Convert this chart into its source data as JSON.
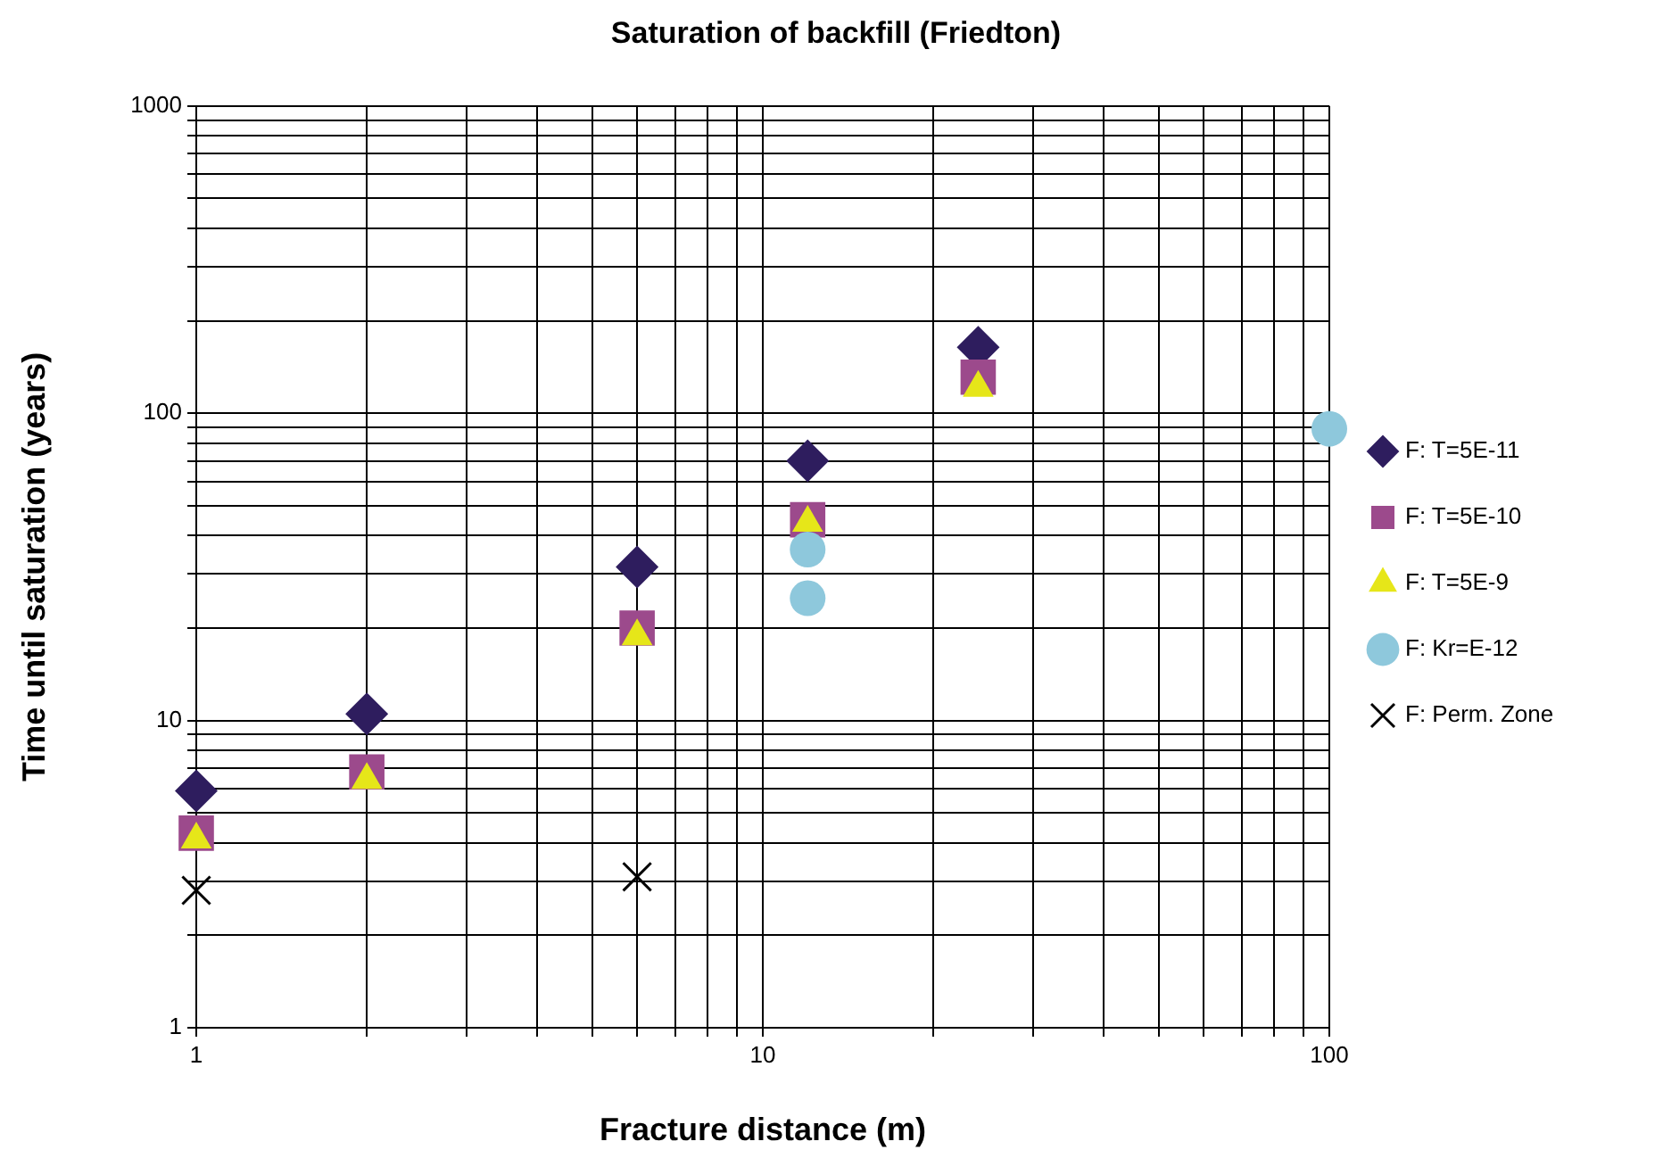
{
  "chart_data": {
    "type": "scatter",
    "title": "Saturation of backfill (Friedton)",
    "xlabel": "Fracture distance (m)",
    "ylabel": "Time until saturation (years)",
    "log": "xy",
    "grid": true,
    "legend": "right",
    "xlim": [
      1,
      100
    ],
    "ylim": [
      1,
      1000
    ],
    "xticks": [
      1,
      {
        "value": 2,
        "label": null
      },
      {
        "value": 3,
        "label": null
      },
      {
        "value": 4,
        "label": null
      },
      {
        "value": 5,
        "label": null
      },
      {
        "value": 6,
        "label": null
      },
      {
        "value": 7,
        "label": null
      },
      {
        "value": 8,
        "label": null
      },
      {
        "value": 9,
        "label": null
      },
      10,
      {
        "value": 20,
        "label": null
      },
      {
        "value": 30,
        "label": null
      },
      {
        "value": 40,
        "label": null
      },
      {
        "value": 50,
        "label": null
      },
      {
        "value": 60,
        "label": null
      },
      {
        "value": 70,
        "label": null
      },
      {
        "value": 80,
        "label": null
      },
      {
        "value": 90,
        "label": null
      },
      100
    ],
    "yticks": [
      1,
      {
        "value": 2,
        "label": null
      },
      {
        "value": 3,
        "label": null
      },
      {
        "value": 4,
        "label": null
      },
      {
        "value": 5,
        "label": null
      },
      {
        "value": 6,
        "label": null
      },
      {
        "value": 7,
        "label": null
      },
      {
        "value": 8,
        "label": null
      },
      {
        "value": 9,
        "label": null
      },
      10,
      {
        "value": 20,
        "label": null
      },
      {
        "value": 30,
        "label": null
      },
      {
        "value": 40,
        "label": null
      },
      {
        "value": 50,
        "label": null
      },
      {
        "value": 60,
        "label": null
      },
      {
        "value": 70,
        "label": null
      },
      {
        "value": 80,
        "label": null
      },
      {
        "value": 90,
        "label": null
      },
      100,
      {
        "value": 200,
        "label": null
      },
      {
        "value": 300,
        "label": null
      },
      {
        "value": 400,
        "label": null
      },
      {
        "value": 500,
        "label": null
      },
      {
        "value": 600,
        "label": null
      },
      {
        "value": 700,
        "label": null
      },
      {
        "value": 800,
        "label": null
      },
      {
        "value": 900,
        "label": null
      },
      1000
    ],
    "series": [
      {
        "name": "F: T=5E-11",
        "color": "#2e1d5e",
        "marker": "diamond",
        "x": [
          1,
          2,
          6,
          12,
          24
        ],
        "values": [
          5.9,
          10.5,
          31.6,
          70,
          164
        ]
      },
      {
        "name": "F: T=5E-10",
        "color": "#9c4a8c",
        "marker": "square",
        "x": [
          1,
          2,
          6,
          12,
          24
        ],
        "values": [
          4.3,
          6.8,
          20,
          45,
          131
        ]
      },
      {
        "name": "F: T=5E-9",
        "color": "#e6e619",
        "marker": "triangle",
        "x": [
          1,
          2,
          6,
          12,
          24
        ],
        "values": [
          4.1,
          6.4,
          18.8,
          44,
          121
        ]
      },
      {
        "name": "F: Kr=E-12",
        "color": "#8ec8dc",
        "marker": "circle",
        "x": [
          12,
          12,
          100
        ],
        "values": [
          36,
          25,
          89
        ]
      },
      {
        "name": "F: Perm. Zone",
        "color": "#000000",
        "marker": "cross",
        "x": [
          1,
          6
        ],
        "values": [
          2.8,
          3.1
        ]
      }
    ]
  }
}
